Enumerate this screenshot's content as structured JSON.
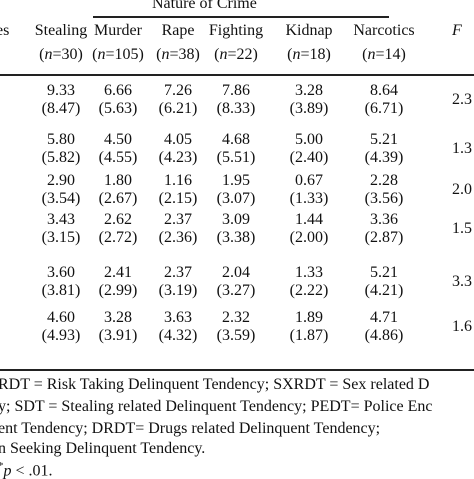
{
  "table": {
    "group_header": "Nature of Crime",
    "columns": [
      {
        "name": "es",
        "n": ""
      },
      {
        "name": "Stealing",
        "n": "=30)"
      },
      {
        "name": "Murder",
        "n": "=105)"
      },
      {
        "name": "Rape",
        "n": "=38)"
      },
      {
        "name": "Fighting",
        "n": "=22)"
      },
      {
        "name": "Kidnap",
        "n": "=18)"
      },
      {
        "name": "Narcotics",
        "n": "=14)"
      }
    ],
    "f_label": "F",
    "n_prefix": "(",
    "n_italic": "n",
    "rows": [
      {
        "values": [
          "9.33",
          "6.66",
          "7.26",
          "7.86",
          "3.28",
          "8.64"
        ],
        "sds": [
          "(8.47)",
          "(5.63)",
          "(6.21)",
          "(8.33)",
          "(3.89)",
          "(6.71)"
        ],
        "f": "2.3"
      },
      {
        "values": [
          "5.80",
          "4.50",
          "4.05",
          "4.68",
          "5.00",
          "5.21"
        ],
        "sds": [
          "(5.82)",
          "(4.55)",
          "(4.23)",
          "(5.51)",
          "(2.40)",
          "(4.39)"
        ],
        "f": "1.3"
      },
      {
        "values": [
          "2.90",
          "1.80",
          "1.16",
          "1.95",
          "0.67",
          "2.28"
        ],
        "sds": [
          "(3.54)",
          "(2.67)",
          "(2.15)",
          "(3.07)",
          "(1.33)",
          "(3.56)"
        ],
        "f": "2.0"
      },
      {
        "values": [
          "3.43",
          "2.62",
          "2.37",
          "3.09",
          "1.44",
          "3.36"
        ],
        "sds": [
          "(3.15)",
          "(2.72)",
          "(2.36)",
          "(3.38)",
          "(2.00)",
          "(2.87)"
        ],
        "f": "1.5"
      },
      {
        "values": [
          "3.60",
          "2.41",
          "2.37",
          "2.04",
          "1.33",
          "5.21"
        ],
        "sds": [
          "(3.81)",
          "(2.99)",
          "(3.19)",
          "(3.27)",
          "(2.22)",
          "(4.21)"
        ],
        "f": "3.3"
      },
      {
        "values": [
          "4.60",
          "3.28",
          "3.63",
          "2.32",
          "1.89",
          "4.71"
        ],
        "sds": [
          "(4.93)",
          "(3.91)",
          "(4.32)",
          "(3.59)",
          "(1.87)",
          "(4.86)"
        ],
        "f": "1.6"
      }
    ]
  },
  "notes": {
    "line1": "RDT = Risk Taking Delinquent Tendency; SXRDT = Sex related D",
    "line2": "y; SDT = Stealing related Delinquent Tendency; PEDT= Police Enc",
    "line3": "ent Tendency; DRDT= Drugs related Delinquent Tendency;",
    "line4": "n Seeking Delinquent Tendency.",
    "sig_star": "*",
    "sig_p": "p",
    "sig_rest": " < .01."
  }
}
